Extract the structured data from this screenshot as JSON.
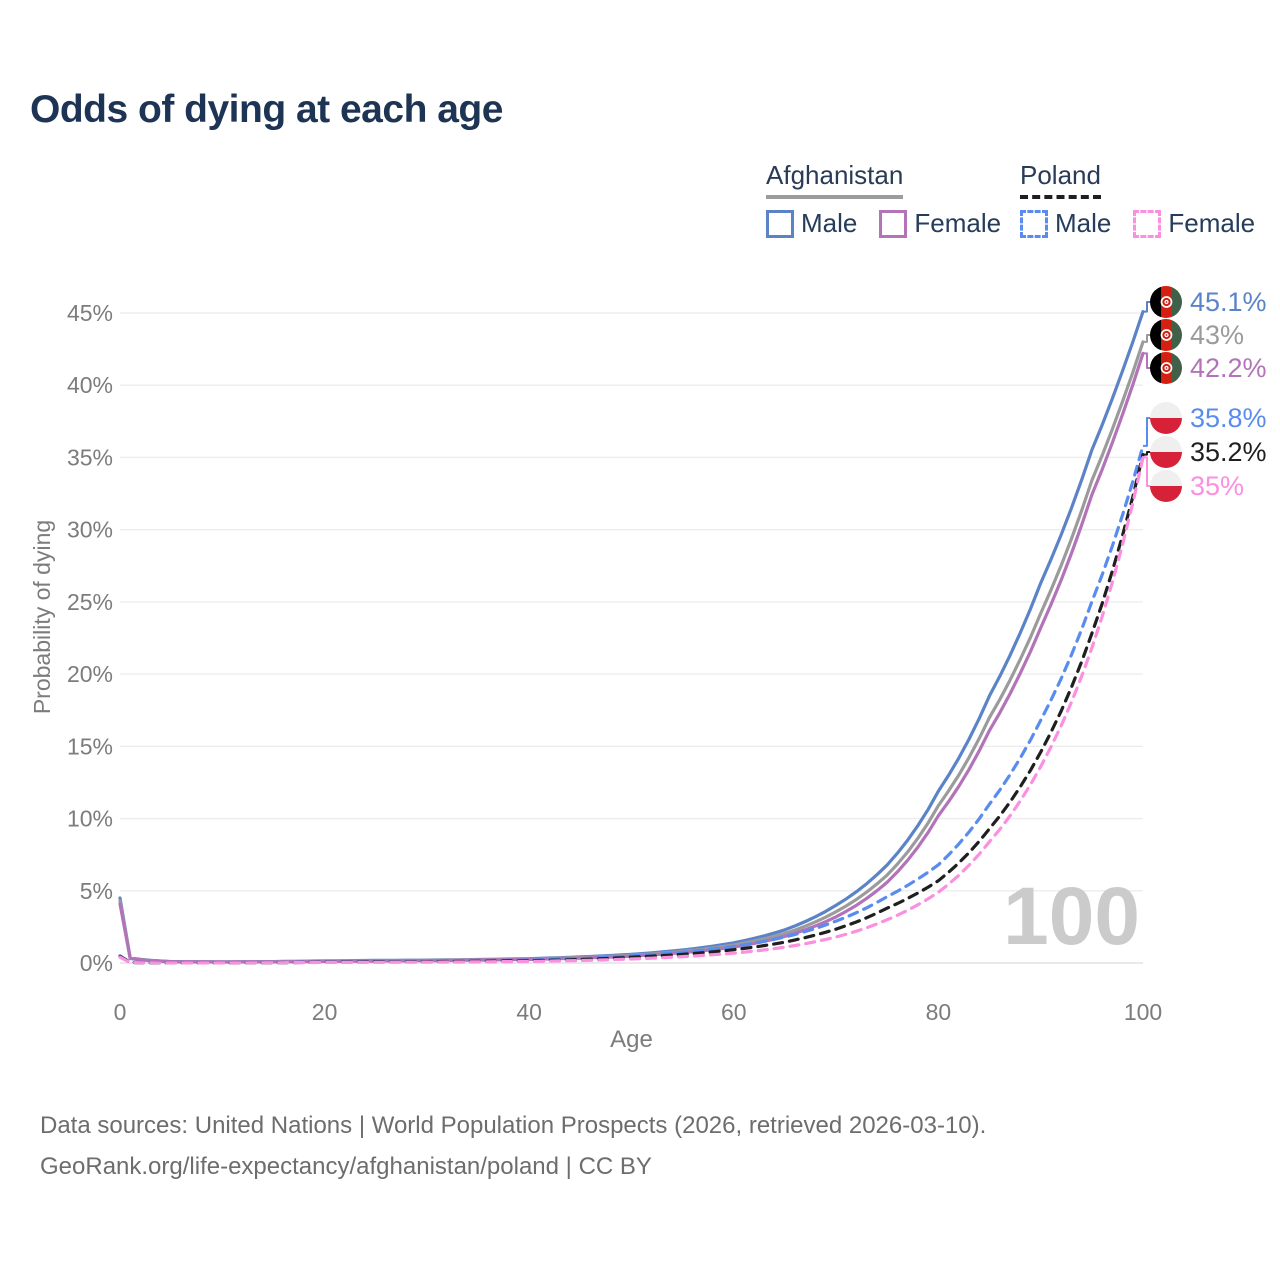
{
  "title": "Odds of dying at each age",
  "legend": {
    "groups": [
      {
        "id": "afghanistan",
        "title": "Afghanistan",
        "line_style": "solid",
        "underline_color": "#9c9c9c",
        "items": [
          {
            "id": "male",
            "label": "Male",
            "color": "#5b83c7",
            "dashed": false
          },
          {
            "id": "female",
            "label": "Female",
            "color": "#b273b8",
            "dashed": false
          }
        ]
      },
      {
        "id": "poland",
        "title": "Poland",
        "line_style": "dashed",
        "underline_color": "#1f1f1f",
        "items": [
          {
            "id": "male",
            "label": "Male",
            "color": "#5a8cf0",
            "dashed": true
          },
          {
            "id": "female",
            "label": "Female",
            "color": "#fb8fe0",
            "dashed": true
          }
        ]
      }
    ]
  },
  "chart_data": {
    "type": "line",
    "title": "Odds of dying at each age",
    "xlabel": "Age",
    "ylabel": "Probability of dying",
    "xlim": [
      0,
      100
    ],
    "ylim": [
      0,
      47
    ],
    "x_ticks": [
      0,
      20,
      40,
      60,
      80,
      100
    ],
    "y_ticks_percent": [
      0,
      5,
      10,
      15,
      20,
      25,
      30,
      35,
      40,
      45
    ],
    "grid": true,
    "watermark": "100",
    "x": [
      0,
      1,
      5,
      10,
      15,
      20,
      25,
      30,
      35,
      40,
      45,
      50,
      55,
      60,
      65,
      70,
      75,
      80,
      85,
      90,
      95,
      100
    ],
    "series": [
      {
        "id": "afg-male",
        "name": "Afghanistan Male",
        "country": "Afghanistan",
        "sex": "male",
        "color": "#5b83c7",
        "dashed": false,
        "end_label": "45.1%",
        "flag": "afghanistan",
        "values": [
          4.5,
          0.35,
          0.1,
          0.08,
          0.1,
          0.15,
          0.18,
          0.2,
          0.24,
          0.3,
          0.42,
          0.6,
          0.9,
          1.4,
          2.3,
          4.0,
          6.8,
          11.9,
          18.5,
          26.3,
          35.5,
          45.1
        ]
      },
      {
        "id": "afg-both",
        "name": "Afghanistan Both sexes",
        "country": "Afghanistan",
        "sex": "both",
        "color": "#9b9b9b",
        "dashed": false,
        "end_label": "43%",
        "flag": "afghanistan",
        "values": [
          4.3,
          0.33,
          0.09,
          0.07,
          0.09,
          0.13,
          0.16,
          0.18,
          0.22,
          0.27,
          0.38,
          0.54,
          0.8,
          1.25,
          2.05,
          3.55,
          6.1,
          10.9,
          17.0,
          24.2,
          33.4,
          43.0
        ]
      },
      {
        "id": "afg-female",
        "name": "Afghanistan Female",
        "country": "Afghanistan",
        "sex": "female",
        "color": "#b273b8",
        "dashed": false,
        "end_label": "42.2%",
        "flag": "afghanistan",
        "values": [
          4.1,
          0.31,
          0.09,
          0.07,
          0.08,
          0.11,
          0.14,
          0.16,
          0.2,
          0.25,
          0.34,
          0.48,
          0.72,
          1.1,
          1.85,
          3.2,
          5.6,
          10.2,
          16.1,
          23.2,
          32.4,
          42.2
        ]
      },
      {
        "id": "pol-male",
        "name": "Poland Male",
        "country": "Poland",
        "sex": "male",
        "color": "#5a8cf0",
        "dashed": true,
        "end_label": "35.8%",
        "flag": "poland",
        "values": [
          0.5,
          0.04,
          0.01,
          0.01,
          0.03,
          0.08,
          0.1,
          0.12,
          0.15,
          0.2,
          0.3,
          0.5,
          0.75,
          1.15,
          1.8,
          2.9,
          4.6,
          6.8,
          11.0,
          16.8,
          25.0,
          35.8
        ]
      },
      {
        "id": "pol-both",
        "name": "Poland Both sexes",
        "country": "Poland",
        "sex": "both",
        "color": "#1f1f1f",
        "dashed": true,
        "end_label": "35.2%",
        "flag": "poland",
        "values": [
          0.45,
          0.04,
          0.01,
          0.01,
          0.02,
          0.06,
          0.08,
          0.09,
          0.12,
          0.16,
          0.24,
          0.4,
          0.6,
          0.92,
          1.45,
          2.35,
          3.8,
          5.7,
          9.3,
          14.6,
          22.8,
          35.2
        ]
      },
      {
        "id": "pol-female",
        "name": "Poland Female",
        "country": "Poland",
        "sex": "female",
        "color": "#fb8fe0",
        "dashed": true,
        "end_label": "35%",
        "flag": "poland",
        "values": [
          0.4,
          0.03,
          0.01,
          0.01,
          0.02,
          0.04,
          0.05,
          0.06,
          0.08,
          0.11,
          0.17,
          0.28,
          0.44,
          0.68,
          1.1,
          1.8,
          3.0,
          4.9,
          8.4,
          13.6,
          21.8,
          35.0
        ]
      }
    ]
  },
  "footer": {
    "line1": "Data sources: United Nations | World Population Prospects (2026, retrieved 2026-03-10).",
    "line2": "GeoRank.org/life-expectancy/afghanistan/poland | CC BY"
  }
}
